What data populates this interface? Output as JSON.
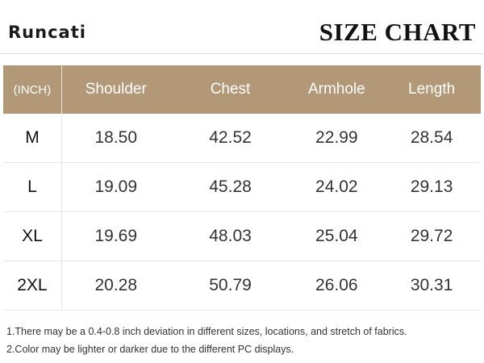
{
  "header": {
    "brand": "Runcati",
    "title": "SIZE CHART"
  },
  "table": {
    "columns": [
      "(INCH)",
      "Shoulder",
      "Chest",
      "Armhole",
      "Length"
    ],
    "rows": [
      [
        "M",
        "18.50",
        "42.52",
        "22.99",
        "28.54"
      ],
      [
        "L",
        "19.09",
        "45.28",
        "24.02",
        "29.13"
      ],
      [
        "XL",
        "19.69",
        "48.03",
        "25.04",
        "29.72"
      ],
      [
        "2XL",
        "20.28",
        "50.79",
        "26.06",
        "30.31"
      ]
    ]
  },
  "notes": [
    "1.There may be a 0.4-0.8 inch deviation in different sizes, locations, and stretch of fabrics.",
    "2.Color may be lighter or darker due to the different PC displays."
  ],
  "colors": {
    "header_band": "#b29876",
    "header_text": "#ffffff"
  }
}
